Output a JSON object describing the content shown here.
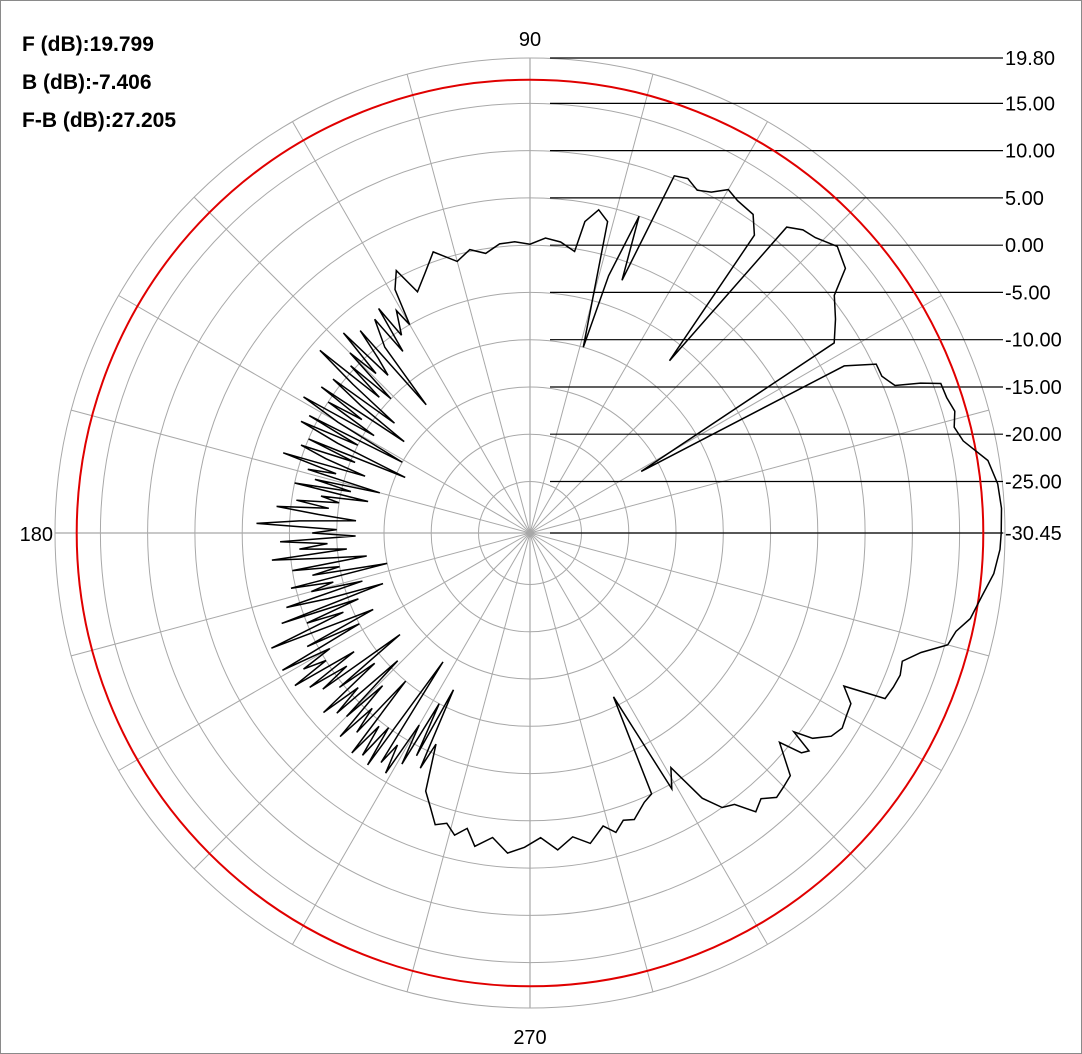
{
  "stats": [
    {
      "label": "F (dB):",
      "value": "19.799"
    },
    {
      "label": "B (dB):",
      "value": "-7.406"
    },
    {
      "label": "F-B (dB):",
      "value": "27.205"
    }
  ],
  "chart_data": {
    "type": "polar",
    "title": "",
    "angle_labels": [
      {
        "angle": 90,
        "text": "90"
      },
      {
        "angle": 180,
        "text": "180"
      },
      {
        "angle": 270,
        "text": "270"
      }
    ],
    "radial_range_db": [
      -30.45,
      19.8
    ],
    "radial_tick_labels": [
      "19.80",
      "15.00",
      "10.00",
      "5.00",
      "0.00",
      "-5.00",
      "-10.00",
      "-15.00",
      "-20.00",
      "-25.00",
      "-30.45"
    ],
    "radial_grid_db": [
      19.8,
      15,
      10,
      5,
      0,
      -5,
      -10,
      -15,
      -20,
      -25,
      -30.45
    ],
    "circle_rings_db": [
      -25,
      -20,
      -15,
      -10,
      -5,
      0,
      5,
      10,
      15,
      19.8
    ],
    "spoke_step_deg": 15,
    "reference_level_db": 17.5,
    "grid": true,
    "colors": {
      "grid": "#a8a8a8",
      "pattern": "#000000",
      "reference": "#e00000",
      "axis": "#000000"
    },
    "series": [
      {
        "points": [
          [
            0,
            19.4
          ],
          [
            3,
            19.5
          ],
          [
            6,
            19.3
          ],
          [
            9,
            18.6
          ],
          [
            12,
            16.4
          ],
          [
            14,
            15.8
          ],
          [
            16,
            16.3
          ],
          [
            18,
            15.9
          ],
          [
            20,
            15.8
          ],
          [
            21,
            13.8
          ],
          [
            22,
            11.2
          ],
          [
            24,
            10.3
          ],
          [
            26,
            10.3
          ],
          [
            28,
            7.2
          ],
          [
            29,
            -17.0
          ],
          [
            32,
            7.5
          ],
          [
            35,
            9.0
          ],
          [
            38,
            10.4
          ],
          [
            40,
            13.1
          ],
          [
            43,
            14.0
          ],
          [
            46,
            13.0
          ],
          [
            48,
            12.7
          ],
          [
            50,
            11.8
          ],
          [
            51,
            -7.0
          ],
          [
            53,
            9.0
          ],
          [
            55,
            10.7
          ],
          [
            58,
            11.0
          ],
          [
            60,
            11.5
          ],
          [
            62,
            10.4
          ],
          [
            64,
            9.9
          ],
          [
            66,
            10.6
          ],
          [
            68,
            10.3
          ],
          [
            70,
            -2.0
          ],
          [
            71,
            5.0
          ],
          [
            73,
            -2.0
          ],
          [
            74,
            -10.0
          ],
          [
            76,
            3.5
          ],
          [
            78,
            4.5
          ],
          [
            80,
            3.0
          ],
          [
            81,
            -0.3
          ],
          [
            84,
            0.5
          ],
          [
            87,
            0.8
          ],
          [
            90,
            0.1
          ],
          [
            93,
            0.4
          ],
          [
            96,
            0.3
          ],
          [
            99,
            -0.5
          ],
          [
            102,
            0.2
          ],
          [
            105,
            -0.7
          ],
          [
            109,
            1.0
          ],
          [
            112,
            -0.8
          ],
          [
            115,
            -2.3
          ],
          [
            117,
            0.7
          ],
          [
            119,
            -1.0
          ],
          [
            120,
            -5.0
          ],
          [
            121,
            -3.0
          ],
          [
            123,
            -5.5
          ],
          [
            124,
            -1.8
          ],
          [
            125,
            -7.0
          ],
          [
            126,
            -2.5
          ],
          [
            128,
            -5.5
          ],
          [
            129,
            -13.0
          ],
          [
            130,
            -2.5
          ],
          [
            131,
            -6.0
          ],
          [
            132,
            -8.0
          ],
          [
            133,
            -1.5
          ],
          [
            134,
            -7.0
          ],
          [
            135,
            -3.5
          ],
          [
            136,
            -10.0
          ],
          [
            137,
            -4.5
          ],
          [
            138,
            -9.0
          ],
          [
            139,
            -1.0
          ],
          [
            140,
            -6.0
          ],
          [
            141,
            -12.0
          ],
          [
            142,
            -4.0
          ],
          [
            143,
            -8.0
          ],
          [
            144,
            -14.0
          ],
          [
            145,
            -3.5
          ],
          [
            146,
            -9.0
          ],
          [
            147,
            -5.0
          ],
          [
            148,
            -11.0
          ],
          [
            149,
            -2.5
          ],
          [
            150,
            -7.0
          ],
          [
            151,
            -15.0
          ],
          [
            152,
            -4.0
          ],
          [
            153,
            -10.0
          ],
          [
            154,
            -3.5
          ],
          [
            155,
            -8.0
          ],
          [
            156,
            -16.0
          ],
          [
            157,
            -5.0
          ],
          [
            158,
            -10.5
          ],
          [
            159,
            -4.5
          ],
          [
            160,
            -7.5
          ],
          [
            161,
            -12.0
          ],
          [
            162,
            -3.0
          ],
          [
            163,
            -9.0
          ],
          [
            164,
            -6.0
          ],
          [
            165,
            -14.0
          ],
          [
            166,
            -7.0
          ],
          [
            167,
            -11.0
          ],
          [
            168,
            -5.0
          ],
          [
            169,
            -13.0
          ],
          [
            170,
            -8.0
          ],
          [
            171,
            -10.0
          ],
          [
            172,
            -5.5
          ],
          [
            173,
            -9.0
          ],
          [
            174,
            -3.5
          ],
          [
            175,
            -8.0
          ],
          [
            176,
            -12.0
          ],
          [
            177,
            -6.0
          ],
          [
            178,
            -1.5
          ],
          [
            179,
            -10.0
          ],
          [
            180,
            -7.406
          ],
          [
            181,
            -12.0
          ],
          [
            182,
            -4.0
          ],
          [
            183,
            -9.0
          ],
          [
            184,
            -6.0
          ],
          [
            185,
            -11.0
          ],
          [
            186,
            -3.0
          ],
          [
            187,
            -8.5
          ],
          [
            188,
            -13.0
          ],
          [
            189,
            -5.0
          ],
          [
            190,
            -10.0
          ],
          [
            191,
            -7.0
          ],
          [
            192,
            -15.0
          ],
          [
            193,
            -4.5
          ],
          [
            194,
            -9.0
          ],
          [
            195,
            -6.5
          ],
          [
            196,
            -12.0
          ],
          [
            197,
            -3.5
          ],
          [
            198,
            -8.0
          ],
          [
            199,
            -14.0
          ],
          [
            200,
            -2.5
          ],
          [
            201,
            -11.0
          ],
          [
            202,
            -5.0
          ],
          [
            203,
            -9.0
          ],
          [
            204,
            -0.5
          ],
          [
            205,
            -7.5
          ],
          [
            206,
            -12.0
          ],
          [
            207,
            -4.0
          ],
          [
            208,
            -10.0
          ],
          [
            209,
            -0.5
          ],
          [
            210,
            -6.0
          ],
          [
            211,
            -2.5
          ],
          [
            212,
            -5.0
          ],
          [
            213,
            -0.8
          ],
          [
            214,
            -8.0
          ],
          [
            215,
            -2.0
          ],
          [
            216,
            -6.5
          ],
          [
            217,
            -3.0
          ],
          [
            218,
            -13.0
          ],
          [
            219,
            -4.5
          ],
          [
            220,
            -9.0
          ],
          [
            221,
            -1.5
          ],
          [
            222,
            -6.0
          ],
          [
            223,
            -2.5
          ],
          [
            224,
            -11.0
          ],
          [
            225,
            -3.0
          ],
          [
            226,
            -8.0
          ],
          [
            227,
            -1.0
          ],
          [
            228,
            -5.5
          ],
          [
            229,
            -2.5
          ],
          [
            230,
            -10.0
          ],
          [
            231,
            -0.5
          ],
          [
            232,
            -4.5
          ],
          [
            233,
            -1.0
          ],
          [
            234,
            -5.0
          ],
          [
            235,
            -0.5
          ],
          [
            236,
            -14.0
          ],
          [
            237,
            -1.5
          ],
          [
            238,
            -4.0
          ],
          [
            239,
            -0.8
          ],
          [
            240,
            -7.0
          ],
          [
            241,
            -2.5
          ],
          [
            242,
            -10.0
          ],
          [
            243,
            -4.0
          ],
          [
            244,
            -12.0
          ],
          [
            245,
            -3.0
          ],
          [
            246,
            -6.0
          ],
          [
            248,
            -1.0
          ],
          [
            250,
            0.4
          ],
          [
            252,
            2.0
          ],
          [
            254,
            1.5
          ],
          [
            256,
            2.5
          ],
          [
            258,
            1.5
          ],
          [
            260,
            3.2
          ],
          [
            263,
            2.0
          ],
          [
            266,
            3.5
          ],
          [
            269,
            2.8
          ],
          [
            272,
            1.8
          ],
          [
            275,
            3.2
          ],
          [
            278,
            2.0
          ],
          [
            281,
            3.0
          ],
          [
            284,
            1.5
          ],
          [
            286,
            2.5
          ],
          [
            288,
            1.5
          ],
          [
            290,
            1.8
          ],
          [
            293,
            0.5
          ],
          [
            295,
            0.0
          ],
          [
            297,
            -11.0
          ],
          [
            299,
            0.5
          ],
          [
            301,
            -1.5
          ],
          [
            303,
            3.0
          ],
          [
            305,
            5.0
          ],
          [
            307,
            5.5
          ],
          [
            309,
            7.5
          ],
          [
            311,
            6.8
          ],
          [
            313,
            7.8
          ],
          [
            315,
            7.5
          ],
          [
            317,
            7.2
          ],
          [
            319,
            5.0
          ],
          [
            320,
            4.0
          ],
          [
            321,
            6.5
          ],
          [
            322,
            7.0
          ],
          [
            323,
            4.5
          ],
          [
            324,
            6.5
          ],
          [
            326,
            8.0
          ],
          [
            328,
            8.5
          ],
          [
            330,
            8.2
          ],
          [
            332,
            8.0
          ],
          [
            334,
            6.5
          ],
          [
            335,
            11.0
          ],
          [
            337,
            11.3
          ],
          [
            339,
            11.5
          ],
          [
            341,
            11.2
          ],
          [
            343,
            12.8
          ],
          [
            345,
            15.3
          ],
          [
            347,
            15.8
          ],
          [
            349,
            17.0
          ],
          [
            352,
            17.8
          ],
          [
            355,
            18.8
          ],
          [
            358,
            19.3
          ],
          [
            360,
            19.4
          ]
        ]
      }
    ]
  }
}
